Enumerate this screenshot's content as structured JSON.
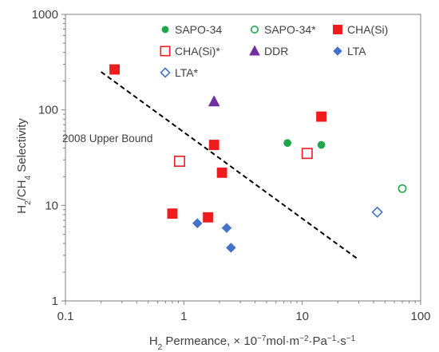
{
  "chart_data": {
    "type": "scatter",
    "x_scale": "log",
    "y_scale": "log",
    "xlim": [
      0.1,
      100
    ],
    "ylim": [
      1,
      1000
    ],
    "xticks": [
      "0.1",
      "1",
      "10",
      "100"
    ],
    "yticks": [
      "1",
      "10",
      "100",
      "1000"
    ],
    "grid": false,
    "legend_position": "top-right",
    "xlabel": {
      "pre": "H",
      "pre_sub": "2",
      "main": " Permeance, × 10",
      "sup1": "−7",
      "mid1": "mol·m",
      "sup2": "−2",
      "mid2": "·Pa",
      "sup3": "−1",
      "mid3": "·s",
      "sup4": "−1"
    },
    "ylabel": {
      "a": "H",
      "a_sub": "2",
      "b": "/CH",
      "b_sub": "4",
      "c": " Selectivity"
    },
    "series": [
      {
        "name": "SAPO-34",
        "marker": "circle",
        "filled": true,
        "color": "#1fa64a",
        "points": [
          [
            7.5,
            45
          ],
          [
            14.5,
            43
          ]
        ]
      },
      {
        "name": "SAPO-34*",
        "marker": "circle",
        "filled": false,
        "color": "#1fa64a",
        "points": [
          [
            70,
            15
          ]
        ]
      },
      {
        "name": "CHA(Si)",
        "marker": "square",
        "filled": true,
        "color": "#ee1c1c",
        "points": [
          [
            0.26,
            265
          ],
          [
            1.8,
            43
          ],
          [
            14.5,
            85
          ],
          [
            2.1,
            22
          ],
          [
            0.8,
            8.2
          ],
          [
            1.6,
            7.5
          ]
        ]
      },
      {
        "name": "CHA(Si)*",
        "marker": "square",
        "filled": false,
        "color": "#ee1c1c",
        "points": [
          [
            0.92,
            29
          ],
          [
            11,
            35
          ]
        ]
      },
      {
        "name": "DDR",
        "marker": "triangle",
        "filled": true,
        "color": "#7030a0",
        "points": [
          [
            1.8,
            122
          ]
        ]
      },
      {
        "name": "LTA",
        "marker": "diamond",
        "filled": true,
        "color": "#4472c4",
        "points": [
          [
            1.3,
            6.5
          ],
          [
            2.3,
            5.8
          ],
          [
            2.5,
            3.6
          ]
        ]
      },
      {
        "name": "LTA*",
        "marker": "diamond",
        "filled": false,
        "color": "#4472c4",
        "points": [
          [
            43,
            8.5
          ]
        ]
      }
    ],
    "upper_bound": {
      "label": "2008 Upper Bound",
      "points": [
        [
          0.2,
          250
        ],
        [
          30,
          2.7
        ]
      ]
    }
  }
}
